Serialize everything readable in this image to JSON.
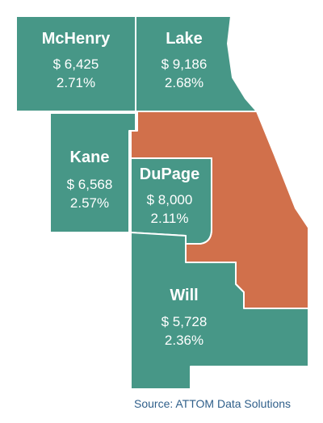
{
  "colors": {
    "county_fill": "#479787",
    "cook_fill": "#d1704b",
    "border": "#ffffff",
    "text": "#ffffff",
    "source_text": "#2f5f8a"
  },
  "counties": {
    "mchenry": {
      "name": "McHenry",
      "amount": "$ 6,425",
      "percent": "2.71%"
    },
    "lake": {
      "name": "Lake",
      "amount": "$ 9,186",
      "percent": "2.68%"
    },
    "kane": {
      "name": "Kane",
      "amount": "$ 6,568",
      "percent": "2.57%"
    },
    "dupage": {
      "name": "DuPage",
      "amount": "$ 8,000",
      "percent": "2.11%"
    },
    "will": {
      "name": "Will",
      "amount": "$ 5,728",
      "percent": "2.36%"
    }
  },
  "source": "Source: ATTOM Data Solutions"
}
